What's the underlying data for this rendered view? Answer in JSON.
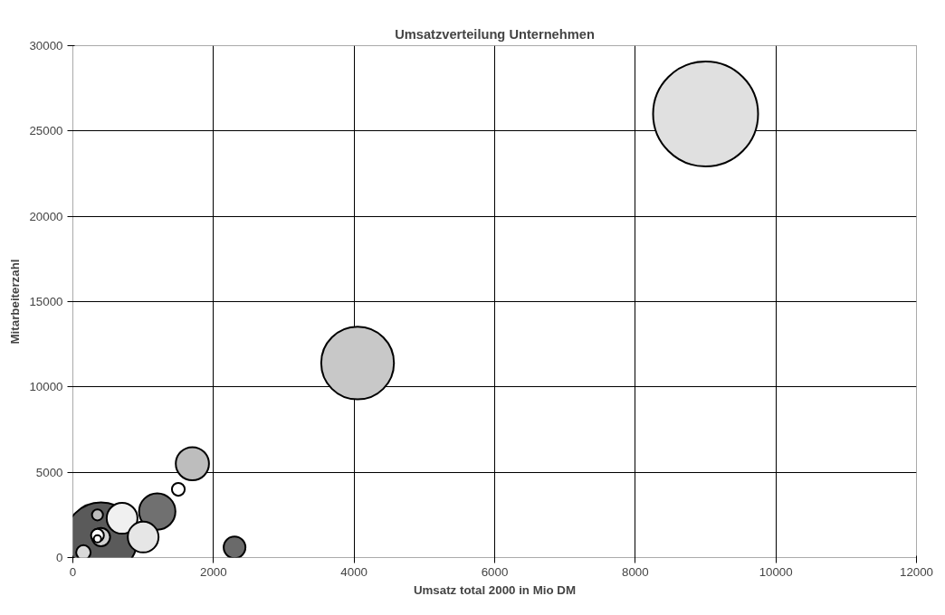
{
  "chart_data": {
    "type": "bubble",
    "title": "Umsatzverteilung Unternehmen",
    "xlabel": "Umsatz total 2000 in Mio DM",
    "ylabel": "Mitarbeiterzahl",
    "x": [
      9000,
      4050,
      400,
      1700,
      1500,
      1200,
      2300,
      700,
      1000,
      350,
      400,
      350,
      350,
      150
    ],
    "values": [
      26000,
      11400,
      1100,
      5500,
      4000,
      2700,
      600,
      2300,
      1200,
      2500,
      1200,
      1300,
      1100,
      300
    ],
    "sizes": [
      1,
      0.48,
      0.48,
      0.1,
      0.015,
      0.12,
      0.043,
      0.086,
      0.086,
      0.011,
      0.03,
      0.015,
      0.005,
      0.019
    ],
    "colors": [
      "#e0e0e0",
      "#c8c8c8",
      "#5a5a5a",
      "#bdbdbd",
      "#ffffff",
      "#707070",
      "#6a6a6a",
      "#f0f0f0",
      "#e6e6e6",
      "#bdbdbd",
      "#d0d0d0",
      "#ffffff",
      "#ffffff",
      "#d9d9d9"
    ],
    "xlim": [
      0,
      12000
    ],
    "ylim": [
      0,
      30000
    ],
    "xticks": [
      0,
      2000,
      4000,
      6000,
      8000,
      10000,
      12000
    ],
    "yticks": [
      0,
      5000,
      10000,
      15000,
      20000,
      25000,
      30000
    ],
    "grid": true
  }
}
